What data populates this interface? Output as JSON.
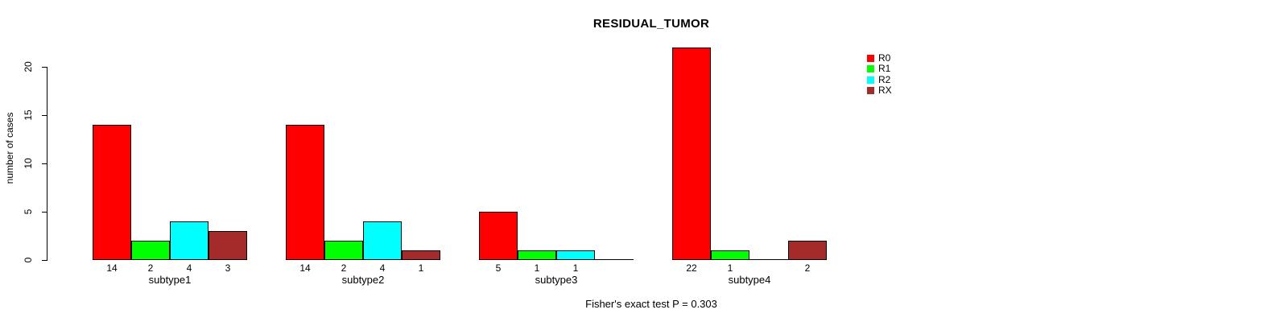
{
  "chart_data": {
    "type": "bar",
    "title": "RESIDUAL_TUMOR",
    "ylabel": "number of cases",
    "footer": "Fisher's exact test P = 0.303",
    "categories": [
      "subtype1",
      "subtype2",
      "subtype3",
      "subtype4"
    ],
    "series": [
      {
        "name": "R0",
        "color": "#FF0000",
        "values": [
          14,
          14,
          5,
          22
        ]
      },
      {
        "name": "R1",
        "color": "#00FF00",
        "values": [
          2,
          2,
          1,
          1
        ]
      },
      {
        "name": "R2",
        "color": "#00FFFF",
        "values": [
          4,
          4,
          1,
          0
        ]
      },
      {
        "name": "RX",
        "color": "#A52A2A",
        "values": [
          3,
          1,
          0,
          2
        ]
      }
    ],
    "bar_value_labels": [
      [
        14,
        2,
        4,
        3
      ],
      [
        14,
        2,
        4,
        1
      ],
      [
        5,
        1,
        1,
        null
      ],
      [
        22,
        1,
        null,
        2
      ]
    ],
    "yticks": [
      0,
      5,
      10,
      15,
      20
    ],
    "ylim": [
      0,
      23
    ],
    "grid": false,
    "legend": {
      "position": "inside-top-right",
      "entries": [
        "R0",
        "R1",
        "R2",
        "RX"
      ]
    },
    "notes": "zero-height bars rendered as baseline segment only, with no value label"
  }
}
